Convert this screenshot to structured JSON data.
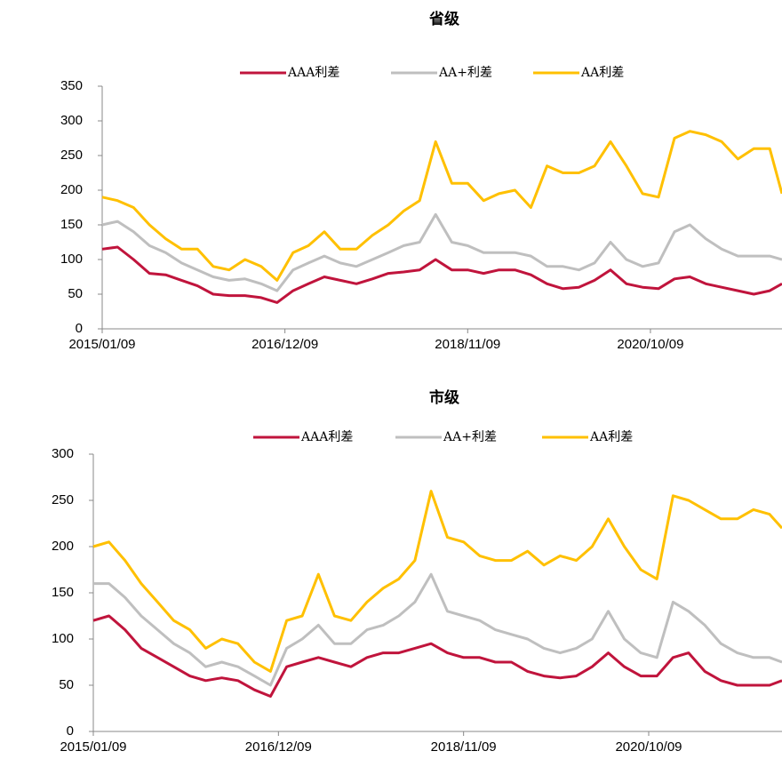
{
  "chart_data": [
    {
      "type": "line",
      "title": "省级",
      "x": [
        "2015/01/09",
        "2015/03/09",
        "2015/05/09",
        "2015/07/09",
        "2015/09/09",
        "2015/11/09",
        "2016/01/09",
        "2016/03/09",
        "2016/05/09",
        "2016/07/09",
        "2016/09/09",
        "2016/11/09",
        "2017/01/09",
        "2017/03/09",
        "2017/05/09",
        "2017/07/09",
        "2017/09/09",
        "2017/11/09",
        "2018/01/09",
        "2018/03/09",
        "2018/05/09",
        "2018/07/09",
        "2018/09/09",
        "2018/11/09",
        "2019/01/09",
        "2019/03/09",
        "2019/05/09",
        "2019/07/09",
        "2019/09/09",
        "2019/11/09",
        "2020/01/09",
        "2020/03/09",
        "2020/05/09",
        "2020/07/09",
        "2020/09/09",
        "2020/11/09",
        "2021/01/09",
        "2021/03/09",
        "2021/05/09",
        "2021/07/09",
        "2021/09/09",
        "2021/11/09",
        "2022/01/09",
        "2022/02/25"
      ],
      "series": [
        {
          "name": "AAA利差",
          "color": "#c0143c",
          "values": [
            115,
            118,
            100,
            80,
            78,
            70,
            62,
            50,
            48,
            48,
            45,
            38,
            55,
            65,
            75,
            70,
            65,
            72,
            80,
            82,
            85,
            100,
            85,
            85,
            80,
            85,
            85,
            78,
            65,
            58,
            60,
            70,
            85,
            65,
            60,
            58,
            72,
            75,
            65,
            60,
            55,
            50,
            55,
            65
          ]
        },
        {
          "name": "AA+利差",
          "color": "#bfbfbf",
          "values": [
            150,
            155,
            140,
            120,
            110,
            95,
            85,
            75,
            70,
            72,
            65,
            55,
            85,
            95,
            105,
            95,
            90,
            100,
            110,
            120,
            125,
            165,
            125,
            120,
            110,
            110,
            110,
            105,
            90,
            90,
            85,
            95,
            125,
            100,
            90,
            95,
            140,
            150,
            130,
            115,
            105,
            105,
            105,
            100
          ]
        },
        {
          "name": "AA利差",
          "color": "#ffc000",
          "values": [
            190,
            185,
            175,
            150,
            130,
            115,
            115,
            90,
            85,
            100,
            90,
            70,
            110,
            120,
            140,
            115,
            115,
            135,
            150,
            170,
            185,
            270,
            210,
            210,
            185,
            195,
            200,
            175,
            235,
            225,
            225,
            235,
            270,
            235,
            195,
            190,
            275,
            285,
            280,
            270,
            245,
            260,
            260,
            195
          ]
        }
      ],
      "xlim": [
        "2015/01/09",
        "2022/02/25"
      ],
      "xticks": [
        "2015/01/09",
        "2016/12/09",
        "2018/11/09",
        "2020/10/09"
      ],
      "ylim": [
        0,
        350
      ],
      "yticks": [
        0,
        50,
        100,
        150,
        200,
        250,
        300,
        350
      ]
    },
    {
      "type": "line",
      "title": "市级",
      "x": [
        "2015/01/09",
        "2015/03/09",
        "2015/05/09",
        "2015/07/09",
        "2015/09/09",
        "2015/11/09",
        "2016/01/09",
        "2016/03/09",
        "2016/05/09",
        "2016/07/09",
        "2016/09/09",
        "2016/11/09",
        "2017/01/09",
        "2017/03/09",
        "2017/05/09",
        "2017/07/09",
        "2017/09/09",
        "2017/11/09",
        "2018/01/09",
        "2018/03/09",
        "2018/05/09",
        "2018/07/09",
        "2018/09/09",
        "2018/11/09",
        "2019/01/09",
        "2019/03/09",
        "2019/05/09",
        "2019/07/09",
        "2019/09/09",
        "2019/11/09",
        "2020/01/09",
        "2020/03/09",
        "2020/05/09",
        "2020/07/09",
        "2020/09/09",
        "2020/11/09",
        "2021/01/09",
        "2021/03/09",
        "2021/05/09",
        "2021/07/09",
        "2021/09/09",
        "2021/11/09",
        "2022/01/09",
        "2022/02/25"
      ],
      "series": [
        {
          "name": "AAA利差",
          "color": "#c0143c",
          "values": [
            120,
            125,
            110,
            90,
            80,
            70,
            60,
            55,
            58,
            55,
            45,
            38,
            70,
            75,
            80,
            75,
            70,
            80,
            85,
            85,
            90,
            95,
            85,
            80,
            80,
            75,
            75,
            65,
            60,
            58,
            60,
            70,
            85,
            70,
            60,
            60,
            80,
            85,
            65,
            55,
            50,
            50,
            50,
            55
          ]
        },
        {
          "name": "AA+利差",
          "color": "#bfbfbf",
          "values": [
            160,
            160,
            145,
            125,
            110,
            95,
            85,
            70,
            75,
            70,
            60,
            50,
            90,
            100,
            115,
            95,
            95,
            110,
            115,
            125,
            140,
            170,
            130,
            125,
            120,
            110,
            105,
            100,
            90,
            85,
            90,
            100,
            130,
            100,
            85,
            80,
            140,
            130,
            115,
            95,
            85,
            80,
            80,
            75
          ]
        },
        {
          "name": "AA利差",
          "color": "#ffc000",
          "values": [
            200,
            205,
            185,
            160,
            140,
            120,
            110,
            90,
            100,
            95,
            75,
            65,
            120,
            125,
            170,
            125,
            120,
            140,
            155,
            165,
            185,
            260,
            210,
            205,
            190,
            185,
            185,
            195,
            180,
            190,
            185,
            200,
            230,
            200,
            175,
            165,
            255,
            250,
            240,
            230,
            230,
            240,
            235,
            220
          ]
        }
      ],
      "xlim": [
        "2015/01/09",
        "2022/02/25"
      ],
      "xticks": [
        "2015/01/09",
        "2016/12/09",
        "2018/11/09",
        "2020/10/09"
      ],
      "ylim": [
        0,
        300
      ],
      "yticks": [
        0,
        50,
        100,
        150,
        200,
        250,
        300
      ]
    }
  ]
}
